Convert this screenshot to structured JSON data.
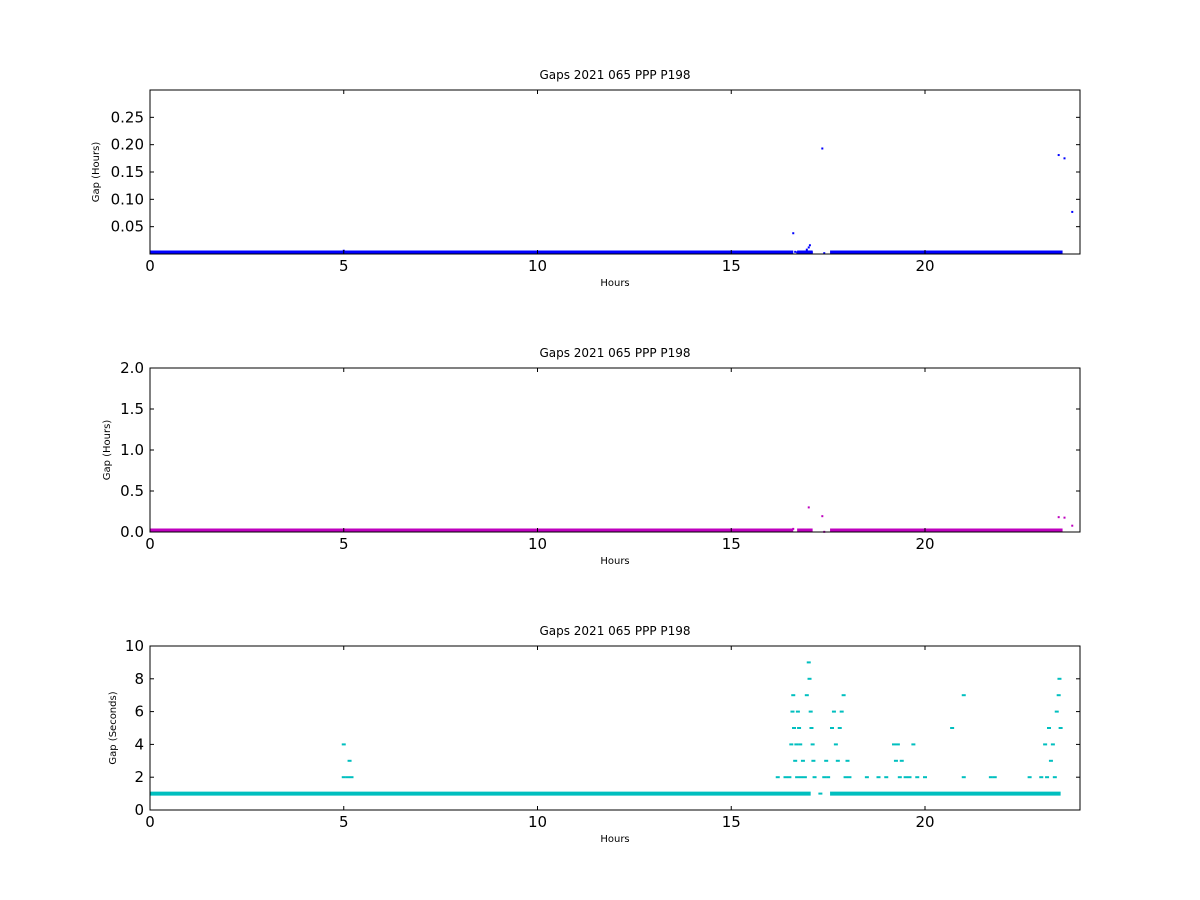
{
  "chart_data": [
    {
      "type": "scatter",
      "title": "Gaps 2021 065 PPP  P198",
      "xlabel": "Hours",
      "ylabel": "Gap (Hours)",
      "xlim": [
        0,
        24
      ],
      "ylim": [
        0,
        0.3
      ],
      "xticks": [
        0,
        5,
        10,
        15,
        20
      ],
      "xtick_labels": [
        "0",
        "5",
        "10",
        "15",
        "20"
      ],
      "yticks": [
        0.05,
        0.1,
        0.15,
        0.2,
        0.25
      ],
      "ytick_labels": [
        "0.05",
        "0.10",
        "0.15",
        "0.20",
        "0.25"
      ],
      "grid": false,
      "color": "#0000ff",
      "baseline": {
        "y": 0.0003,
        "segments": [
          [
            0,
            16.6
          ],
          [
            16.7,
            17.1
          ],
          [
            17.55,
            23.55
          ]
        ]
      },
      "points": [
        [
          5.0,
          0.006
        ],
        [
          9.85,
          0.004
        ],
        [
          16.6,
          0.038
        ],
        [
          16.65,
          0.004
        ],
        [
          16.7,
          0.003
        ],
        [
          16.8,
          0.002
        ],
        [
          16.9,
          0.003
        ],
        [
          16.95,
          0.008
        ],
        [
          17.0,
          0.012
        ],
        [
          17.03,
          0.016
        ],
        [
          17.08,
          0.003
        ],
        [
          17.35,
          0.193
        ],
        [
          17.4,
          0.0015
        ],
        [
          23.45,
          0.181
        ],
        [
          23.6,
          0.175
        ],
        [
          23.5,
          0.004
        ],
        [
          23.8,
          0.077
        ]
      ]
    },
    {
      "type": "scatter",
      "title": "Gaps 2021 065 PPP  P198",
      "xlabel": "Hours",
      "ylabel": "Gap (Hours)",
      "xlim": [
        0,
        24
      ],
      "ylim": [
        0,
        2.0
      ],
      "xticks": [
        0,
        5,
        10,
        15,
        20
      ],
      "xtick_labels": [
        "0",
        "5",
        "10",
        "15",
        "20"
      ],
      "yticks": [
        0,
        0.5,
        1.0,
        1.5,
        2.0
      ],
      "ytick_labels": [
        "0.0",
        "0.5",
        "1.0",
        "1.5",
        "2.0"
      ],
      "grid": false,
      "color": "#bf00bf",
      "baseline": {
        "y": 0.0003,
        "segments": [
          [
            0,
            16.6
          ],
          [
            16.7,
            17.1
          ],
          [
            17.55,
            23.55
          ]
        ]
      },
      "points": [
        [
          16.6,
          0.038
        ],
        [
          17.0,
          0.3
        ],
        [
          17.35,
          0.193
        ],
        [
          17.4,
          0.002
        ],
        [
          23.45,
          0.181
        ],
        [
          23.6,
          0.175
        ],
        [
          23.8,
          0.077
        ]
      ]
    },
    {
      "type": "scatter",
      "title": "Gaps 2021 065 PPP  P198",
      "xlabel": "Hours",
      "ylabel": "Gap (Seconds)",
      "xlim": [
        0,
        24
      ],
      "ylim": [
        0,
        10
      ],
      "xticks": [
        0,
        5,
        10,
        15,
        20
      ],
      "xtick_labels": [
        "0",
        "5",
        "10",
        "15",
        "20"
      ],
      "yticks": [
        0,
        2,
        4,
        6,
        8,
        10
      ],
      "ytick_labels": [
        "0",
        "2",
        "4",
        "6",
        "8",
        "10"
      ],
      "grid": false,
      "color": "#00bfbf",
      "baseline": {
        "y": 1,
        "segments": [
          [
            0,
            17.05
          ],
          [
            17.55,
            23.5
          ]
        ]
      },
      "points": [
        [
          5.0,
          4
        ],
        [
          5.0,
          2
        ],
        [
          5.1,
          2
        ],
        [
          5.15,
          3
        ],
        [
          5.2,
          2
        ],
        [
          16.2,
          2
        ],
        [
          16.4,
          2
        ],
        [
          16.5,
          2
        ],
        [
          16.55,
          4
        ],
        [
          16.58,
          6
        ],
        [
          16.6,
          7
        ],
        [
          16.62,
          5
        ],
        [
          16.65,
          3
        ],
        [
          16.68,
          4
        ],
        [
          16.7,
          2
        ],
        [
          16.72,
          6
        ],
        [
          16.75,
          5
        ],
        [
          16.78,
          4
        ],
        [
          16.8,
          2
        ],
        [
          16.85,
          3
        ],
        [
          16.9,
          2
        ],
        [
          16.95,
          7
        ],
        [
          17.0,
          9
        ],
        [
          17.02,
          8
        ],
        [
          17.05,
          6
        ],
        [
          17.07,
          5
        ],
        [
          17.1,
          4
        ],
        [
          17.12,
          3
        ],
        [
          17.15,
          2
        ],
        [
          17.3,
          1
        ],
        [
          17.4,
          2
        ],
        [
          17.45,
          3
        ],
        [
          17.5,
          2
        ],
        [
          17.6,
          5
        ],
        [
          17.65,
          6
        ],
        [
          17.7,
          4
        ],
        [
          17.75,
          3
        ],
        [
          17.8,
          5
        ],
        [
          17.85,
          6
        ],
        [
          17.9,
          7
        ],
        [
          17.95,
          2
        ],
        [
          18.0,
          3
        ],
        [
          18.05,
          2
        ],
        [
          18.5,
          2
        ],
        [
          18.8,
          2
        ],
        [
          19.0,
          2
        ],
        [
          19.2,
          4
        ],
        [
          19.25,
          3
        ],
        [
          19.3,
          4
        ],
        [
          19.35,
          2
        ],
        [
          19.4,
          3
        ],
        [
          19.5,
          2
        ],
        [
          19.6,
          2
        ],
        [
          19.7,
          4
        ],
        [
          19.8,
          2
        ],
        [
          20.0,
          2
        ],
        [
          20.7,
          5
        ],
        [
          21.0,
          7
        ],
        [
          21.0,
          2
        ],
        [
          21.7,
          2
        ],
        [
          21.8,
          2
        ],
        [
          22.7,
          2
        ],
        [
          23.0,
          2
        ],
        [
          23.1,
          4
        ],
        [
          23.15,
          2
        ],
        [
          23.2,
          5
        ],
        [
          23.25,
          3
        ],
        [
          23.3,
          4
        ],
        [
          23.35,
          2
        ],
        [
          23.4,
          6
        ],
        [
          23.45,
          7
        ],
        [
          23.47,
          8
        ],
        [
          23.5,
          5
        ]
      ]
    }
  ]
}
